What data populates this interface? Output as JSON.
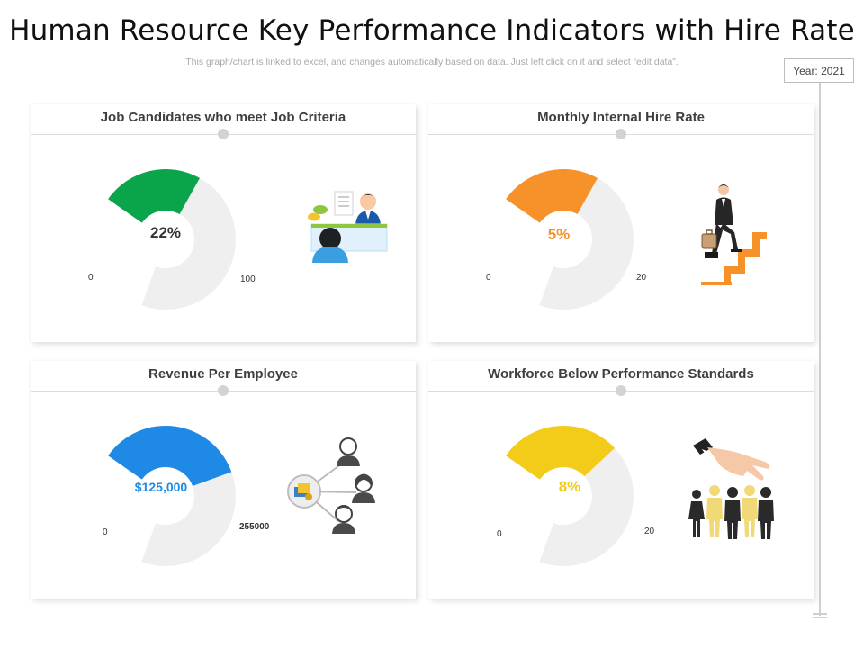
{
  "title": "Human Resource Key Performance Indicators with Hire Rate",
  "subtitle": "This graph/chart is linked to excel, and changes automatically based on data. Just left click on it and select “edit data”.",
  "year_label": "Year: 2021",
  "colors": {
    "track": "#efefef",
    "green": "#0aa54a",
    "orange": "#f7922a",
    "blue": "#1f8ae6",
    "yellow": "#f2cc18"
  },
  "chart_data": [
    {
      "type": "gauge",
      "title": "Job Candidates who meet Job Criteria",
      "value": 22,
      "min": 0,
      "max": 100,
      "value_label": "22%",
      "min_label": "0",
      "max_label": "100",
      "color": "#0aa54a",
      "label_color": "#333333",
      "icon": "interview-icon"
    },
    {
      "type": "gauge",
      "title": "Monthly Internal Hire Rate",
      "value": 5,
      "min": 0,
      "max": 20,
      "value_label": "5%",
      "min_label": "0",
      "max_label": "20",
      "color": "#f7922a",
      "label_color": "#f7922a",
      "icon": "career-stairs-icon"
    },
    {
      "type": "gauge",
      "title": "Revenue Per Employee",
      "value": 125000,
      "min": 0,
      "max": 255000,
      "value_label": "$125,000",
      "min_label": "0",
      "max_label": "255000",
      "color": "#1f8ae6",
      "label_color": "#1f8ae6",
      "icon": "revenue-network-icon"
    },
    {
      "type": "gauge",
      "title": "Workforce Below Performance Standards",
      "value": 8,
      "min": 0,
      "max": 20,
      "value_label": "8%",
      "min_label": "0",
      "max_label": "20",
      "color": "#f2cc18",
      "label_color": "#f2cc18",
      "icon": "workforce-selection-icon"
    }
  ]
}
